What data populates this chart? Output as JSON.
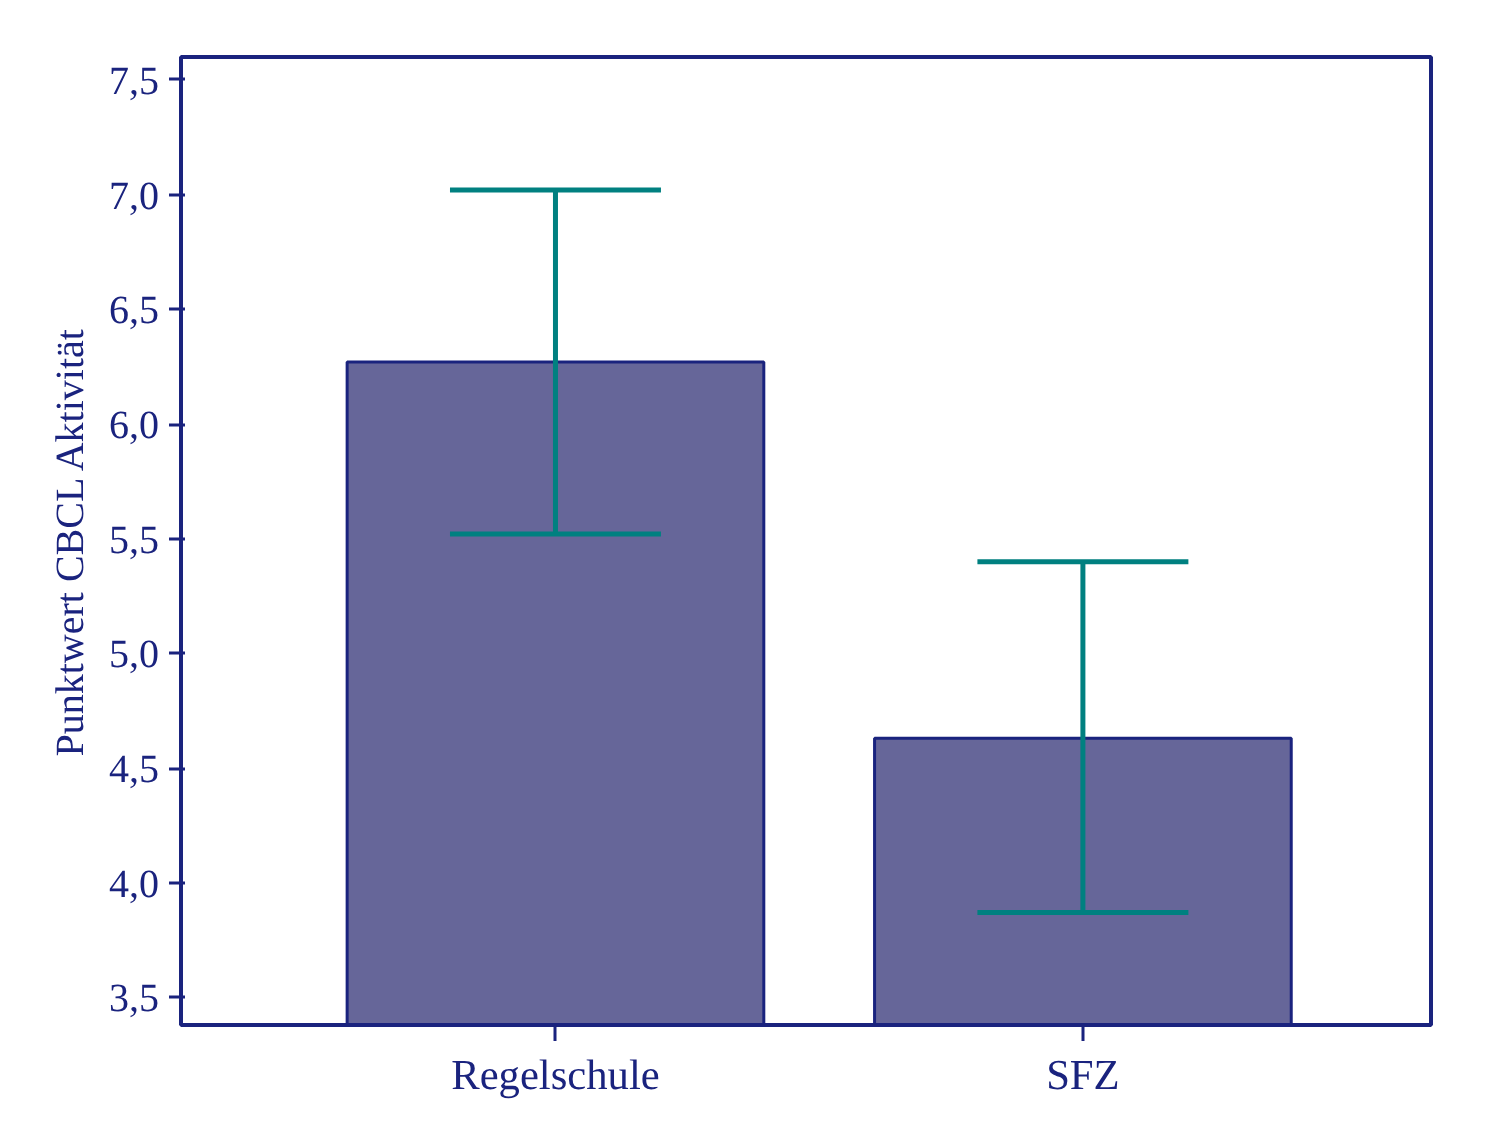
{
  "chart_data": {
    "type": "bar",
    "ylabel": "Punktwert CBCL Aktivität",
    "categories": [
      "Regelschule",
      "SFZ"
    ],
    "values": [
      6.27,
      4.63
    ],
    "errors": [
      [
        5.52,
        7.02
      ],
      [
        3.87,
        5.4
      ]
    ],
    "color": "#666699",
    "ylim": [
      3.38,
      7.6
    ],
    "yticks": [
      {
        "value": 3.5,
        "label": "3,5"
      },
      {
        "value": 4.0,
        "label": "4,0"
      },
      {
        "value": 4.5,
        "label": "4,5"
      },
      {
        "value": 5.0,
        "label": "5,0"
      },
      {
        "value": 5.5,
        "label": "5,5"
      },
      {
        "value": 6.0,
        "label": "6,0"
      },
      {
        "value": 6.5,
        "label": "6,5"
      },
      {
        "value": 7.0,
        "label": "7,0"
      },
      {
        "value": 7.5,
        "label": "7,5"
      }
    ],
    "grid": false
  }
}
